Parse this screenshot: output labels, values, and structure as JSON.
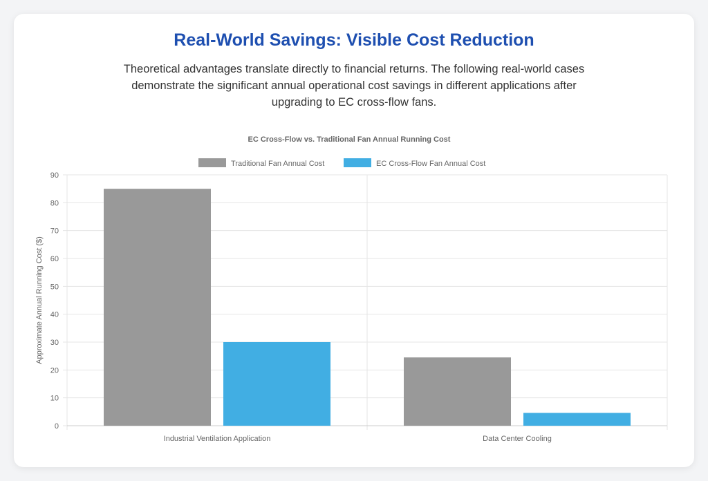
{
  "header": {
    "title": "Real-World Savings: Visible Cost Reduction",
    "description": "Theoretical advantages translate directly to financial returns. The following real-world cases demonstrate the significant annual operational cost savings in different applications after upgrading to EC cross-flow fans."
  },
  "chart_data": {
    "type": "bar",
    "title": "EC Cross-Flow vs. Traditional Fan Annual Running Cost",
    "xlabel": "",
    "ylabel": "Approximate Annual Running Cost ($)",
    "ylim": [
      0,
      90
    ],
    "yticks": [
      0,
      10,
      20,
      30,
      40,
      50,
      60,
      70,
      80,
      90
    ],
    "categories": [
      "Industrial Ventilation Application",
      "Data Center Cooling"
    ],
    "series": [
      {
        "name": "Traditional Fan Annual Cost",
        "color": "#999999",
        "values": [
          85,
          24.5
        ]
      },
      {
        "name": "EC Cross-Flow Fan Annual Cost",
        "color": "#41aee3",
        "values": [
          30,
          4.6
        ]
      }
    ],
    "legend": "top",
    "grid": true
  }
}
